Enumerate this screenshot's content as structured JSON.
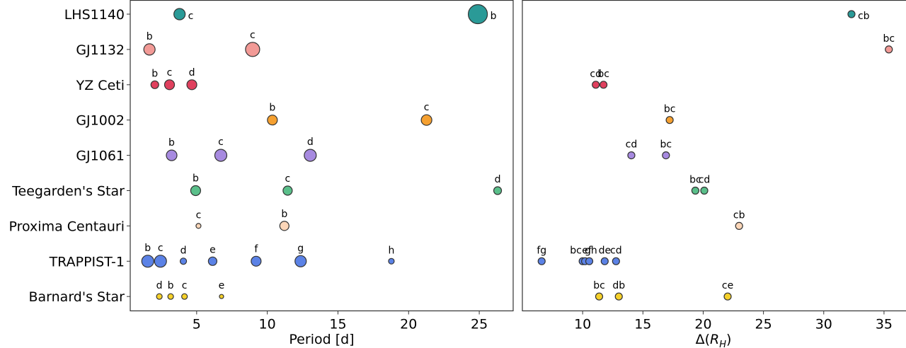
{
  "chart_data": [
    {
      "type": "scatter",
      "panel": "left",
      "title": "",
      "xlabel": "Period [d]",
      "ylabel": "",
      "xlim": [
        0.3,
        27.4
      ],
      "xticks": [
        5,
        10,
        15,
        20,
        25
      ],
      "grid": false,
      "categories": [
        "LHS1140",
        "GJ1132",
        "YZ Ceti",
        "GJ1002",
        "GJ1061",
        "Teegarden's Star",
        "Proxima Centauri",
        "TRAPPIST-1",
        "Barnard's Star"
      ],
      "series": [
        {
          "name": "LHS1140",
          "color": "#2a9a97",
          "label_position": "right",
          "points": [
            {
              "label": "c",
              "x": 3.79,
              "size": 8
            },
            {
              "label": "b",
              "x": 24.9,
              "size": 13.5
            }
          ]
        },
        {
          "name": "GJ1132",
          "color": "#f29a96",
          "label_position": "above",
          "points": [
            {
              "label": "b",
              "x": 1.66,
              "size": 8
            },
            {
              "label": "c",
              "x": 8.96,
              "size": 10
            }
          ]
        },
        {
          "name": "YZ Ceti",
          "color": "#e0405e",
          "label_position": "above",
          "points": [
            {
              "label": "b",
              "x": 2.04,
              "size": 5.5
            },
            {
              "label": "c",
              "x": 3.08,
              "size": 7
            },
            {
              "label": "d",
              "x": 4.66,
              "size": 7
            }
          ]
        },
        {
          "name": "GJ1002",
          "color": "#f5a030",
          "label_position": "above",
          "points": [
            {
              "label": "b",
              "x": 10.36,
              "size": 7
            },
            {
              "label": "c",
              "x": 21.27,
              "size": 7.5
            }
          ]
        },
        {
          "name": "GJ1061",
          "color": "#a78ae0",
          "label_position": "above",
          "points": [
            {
              "label": "b",
              "x": 3.23,
              "size": 7.5
            },
            {
              "label": "c",
              "x": 6.71,
              "size": 8.5
            },
            {
              "label": "d",
              "x": 13.04,
              "size": 8.5
            }
          ]
        },
        {
          "name": "Teegarden's Star",
          "color": "#5abf8a",
          "label_position": "above",
          "points": [
            {
              "label": "b",
              "x": 4.93,
              "size": 7
            },
            {
              "label": "c",
              "x": 11.44,
              "size": 6.5
            },
            {
              "label": "d",
              "x": 26.3,
              "size": 5.5
            }
          ]
        },
        {
          "name": "Proxima Centauri",
          "color": "#fcd6b8",
          "label_position": "above",
          "points": [
            {
              "label": "c",
              "x": 5.13,
              "size": 3.5
            },
            {
              "label": "b",
              "x": 11.21,
              "size": 6.5
            }
          ]
        },
        {
          "name": "TRAPPIST-1",
          "color": "#5b82e6",
          "label_position": "above",
          "points": [
            {
              "label": "b",
              "x": 1.54,
              "size": 8.5
            },
            {
              "label": "c",
              "x": 2.44,
              "size": 8.5
            },
            {
              "label": "d",
              "x": 4.06,
              "size": 4.5
            },
            {
              "label": "e",
              "x": 6.13,
              "size": 6
            },
            {
              "label": "f",
              "x": 9.21,
              "size": 7
            },
            {
              "label": "g",
              "x": 12.36,
              "size": 8
            },
            {
              "label": "h",
              "x": 18.78,
              "size": 4
            }
          ]
        },
        {
          "name": "Barnard's Star",
          "color": "#f5d02a",
          "label_position": "above",
          "points": [
            {
              "label": "d",
              "x": 2.36,
              "size": 4
            },
            {
              "label": "b",
              "x": 3.16,
              "size": 4
            },
            {
              "label": "c",
              "x": 4.14,
              "size": 4
            },
            {
              "label": "e",
              "x": 6.76,
              "size": 3
            }
          ]
        }
      ]
    },
    {
      "type": "scatter",
      "panel": "right",
      "title": "",
      "xlabel": "Δ(R_H)",
      "ylabel": "",
      "xlim": [
        5.0,
        37.0
      ],
      "xticks": [
        10,
        15,
        20,
        25,
        30,
        35
      ],
      "grid": false,
      "categories": [
        "LHS1140",
        "GJ1132",
        "YZ Ceti",
        "GJ1002",
        "GJ1061",
        "Teegarden's Star",
        "Proxima Centauri",
        "TRAPPIST-1",
        "Barnard's Star"
      ],
      "series": [
        {
          "name": "LHS1140",
          "color": "#2a9a97",
          "label_position": "right",
          "points": [
            {
              "label": "cb",
              "x": 32.3
            }
          ]
        },
        {
          "name": "GJ1132",
          "color": "#f29a96",
          "label_position": "above",
          "points": [
            {
              "label": "bc",
              "x": 35.4
            }
          ]
        },
        {
          "name": "YZ Ceti",
          "color": "#e0405e",
          "label_position": "above",
          "points": [
            {
              "label": "cd",
              "x": 11.09
            },
            {
              "label": "bc",
              "x": 11.73
            }
          ]
        },
        {
          "name": "GJ1002",
          "color": "#f5a030",
          "label_position": "above",
          "points": [
            {
              "label": "bc",
              "x": 17.22
            }
          ]
        },
        {
          "name": "GJ1061",
          "color": "#a78ae0",
          "label_position": "above",
          "points": [
            {
              "label": "cd",
              "x": 14.04
            },
            {
              "label": "bc",
              "x": 16.91
            }
          ]
        },
        {
          "name": "Teegarden's Star",
          "color": "#5abf8a",
          "label_position": "above",
          "points": [
            {
              "label": "bc",
              "x": 19.35
            },
            {
              "label": "cd",
              "x": 20.09
            }
          ]
        },
        {
          "name": "Proxima Centauri",
          "color": "#fcd6b8",
          "label_position": "above",
          "points": [
            {
              "label": "cb",
              "x": 22.98
            }
          ]
        },
        {
          "name": "TRAPPIST-1",
          "color": "#5b82e6",
          "label_position": "above",
          "points": [
            {
              "label": "fg",
              "x": 6.6
            },
            {
              "label": "bc",
              "x": 10.0,
              "label_dx": -1.2
            },
            {
              "label": "ef",
              "x": 10.2,
              "label_dx": 0.3
            },
            {
              "label": "gh",
              "x": 10.55,
              "label_dx": 0.3
            },
            {
              "label": "de",
              "x": 11.83
            },
            {
              "label": "cd",
              "x": 12.77
            }
          ]
        },
        {
          "name": "Barnard's Star",
          "color": "#f5d02a",
          "label_position": "above",
          "points": [
            {
              "label": "bc",
              "x": 11.37
            },
            {
              "label": "db",
              "x": 13.0
            },
            {
              "label": "ce",
              "x": 22.03
            }
          ]
        }
      ]
    }
  ]
}
